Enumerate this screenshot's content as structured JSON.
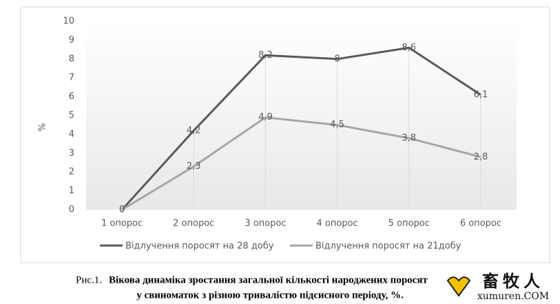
{
  "chart_data": {
    "type": "line",
    "y_label": "%",
    "categories": [
      "1 опорос",
      "2 опорос",
      "3 опорос",
      "4 опорос",
      "5 опорос",
      "6 опорос"
    ],
    "series": [
      {
        "name": "Відлучення поросят на 28 добу",
        "color": "#595959",
        "values": [
          0,
          4.2,
          8.2,
          8,
          8.6,
          6.1
        ],
        "value_labels": [
          "0",
          "4,2",
          "8,2",
          "8",
          "8,6",
          "6,1"
        ]
      },
      {
        "name": "Відлучення поросят на 21добу",
        "color": "#a6a6a6",
        "values": [
          0,
          2.3,
          4.9,
          4.5,
          3.8,
          2.8
        ],
        "value_labels": [
          "0",
          "2,3",
          "4,9",
          "4,5",
          "3,8",
          "2,8"
        ]
      }
    ],
    "ylim": [
      0,
      10
    ],
    "yticks": [
      0,
      1,
      2,
      3,
      4,
      5,
      6,
      7,
      8,
      9,
      10
    ],
    "drop_lines": true
  },
  "caption": {
    "prefix": "Рис.1.",
    "line1": "Вікова динаміка зростання загальної кількості народжених поросят",
    "line2": "у свиноматок з різною тривалістю підсисного періоду, %."
  },
  "watermark": {
    "logo": "畜牧人",
    "site": "xumuren.COM"
  }
}
